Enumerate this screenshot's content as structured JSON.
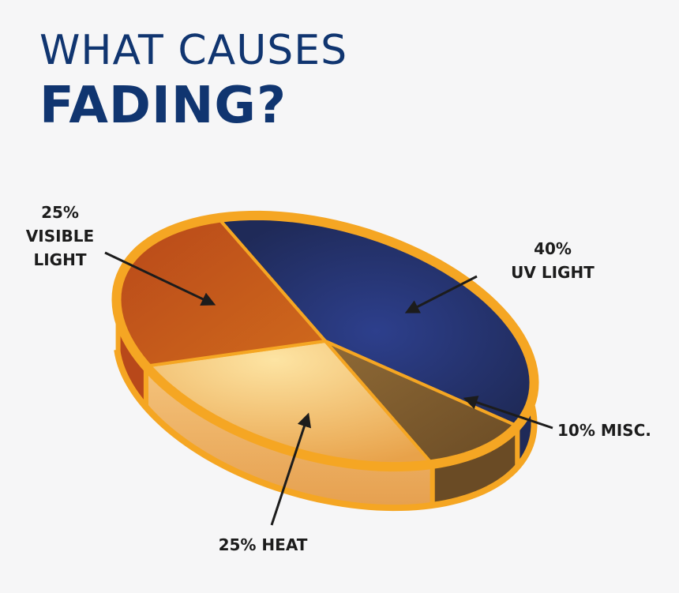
{
  "title": {
    "line1": "WHAT CAUSES",
    "line2": "FADING?",
    "color": "#103570"
  },
  "chart_data": {
    "type": "pie",
    "title": "WHAT CAUSES FADING?",
    "slices": [
      {
        "label": "UV LIGHT",
        "value": 40,
        "color": "#27356f",
        "label_lines": [
          "40%",
          "UV LIGHT"
        ]
      },
      {
        "label": "MISC.",
        "value": 10,
        "color": "#7e5a30",
        "label_lines": [
          "10% MISC."
        ]
      },
      {
        "label": "HEAT",
        "value": 25,
        "color": "#f3c27a",
        "label_lines": [
          "25% HEAT"
        ]
      },
      {
        "label": "VISIBLE LIGHT",
        "value": 25,
        "color": "#c2561a",
        "label_lines": [
          "25%",
          "VISIBLE",
          "LIGHT"
        ]
      }
    ],
    "rim_color": "#f5a623",
    "legend": "none"
  }
}
